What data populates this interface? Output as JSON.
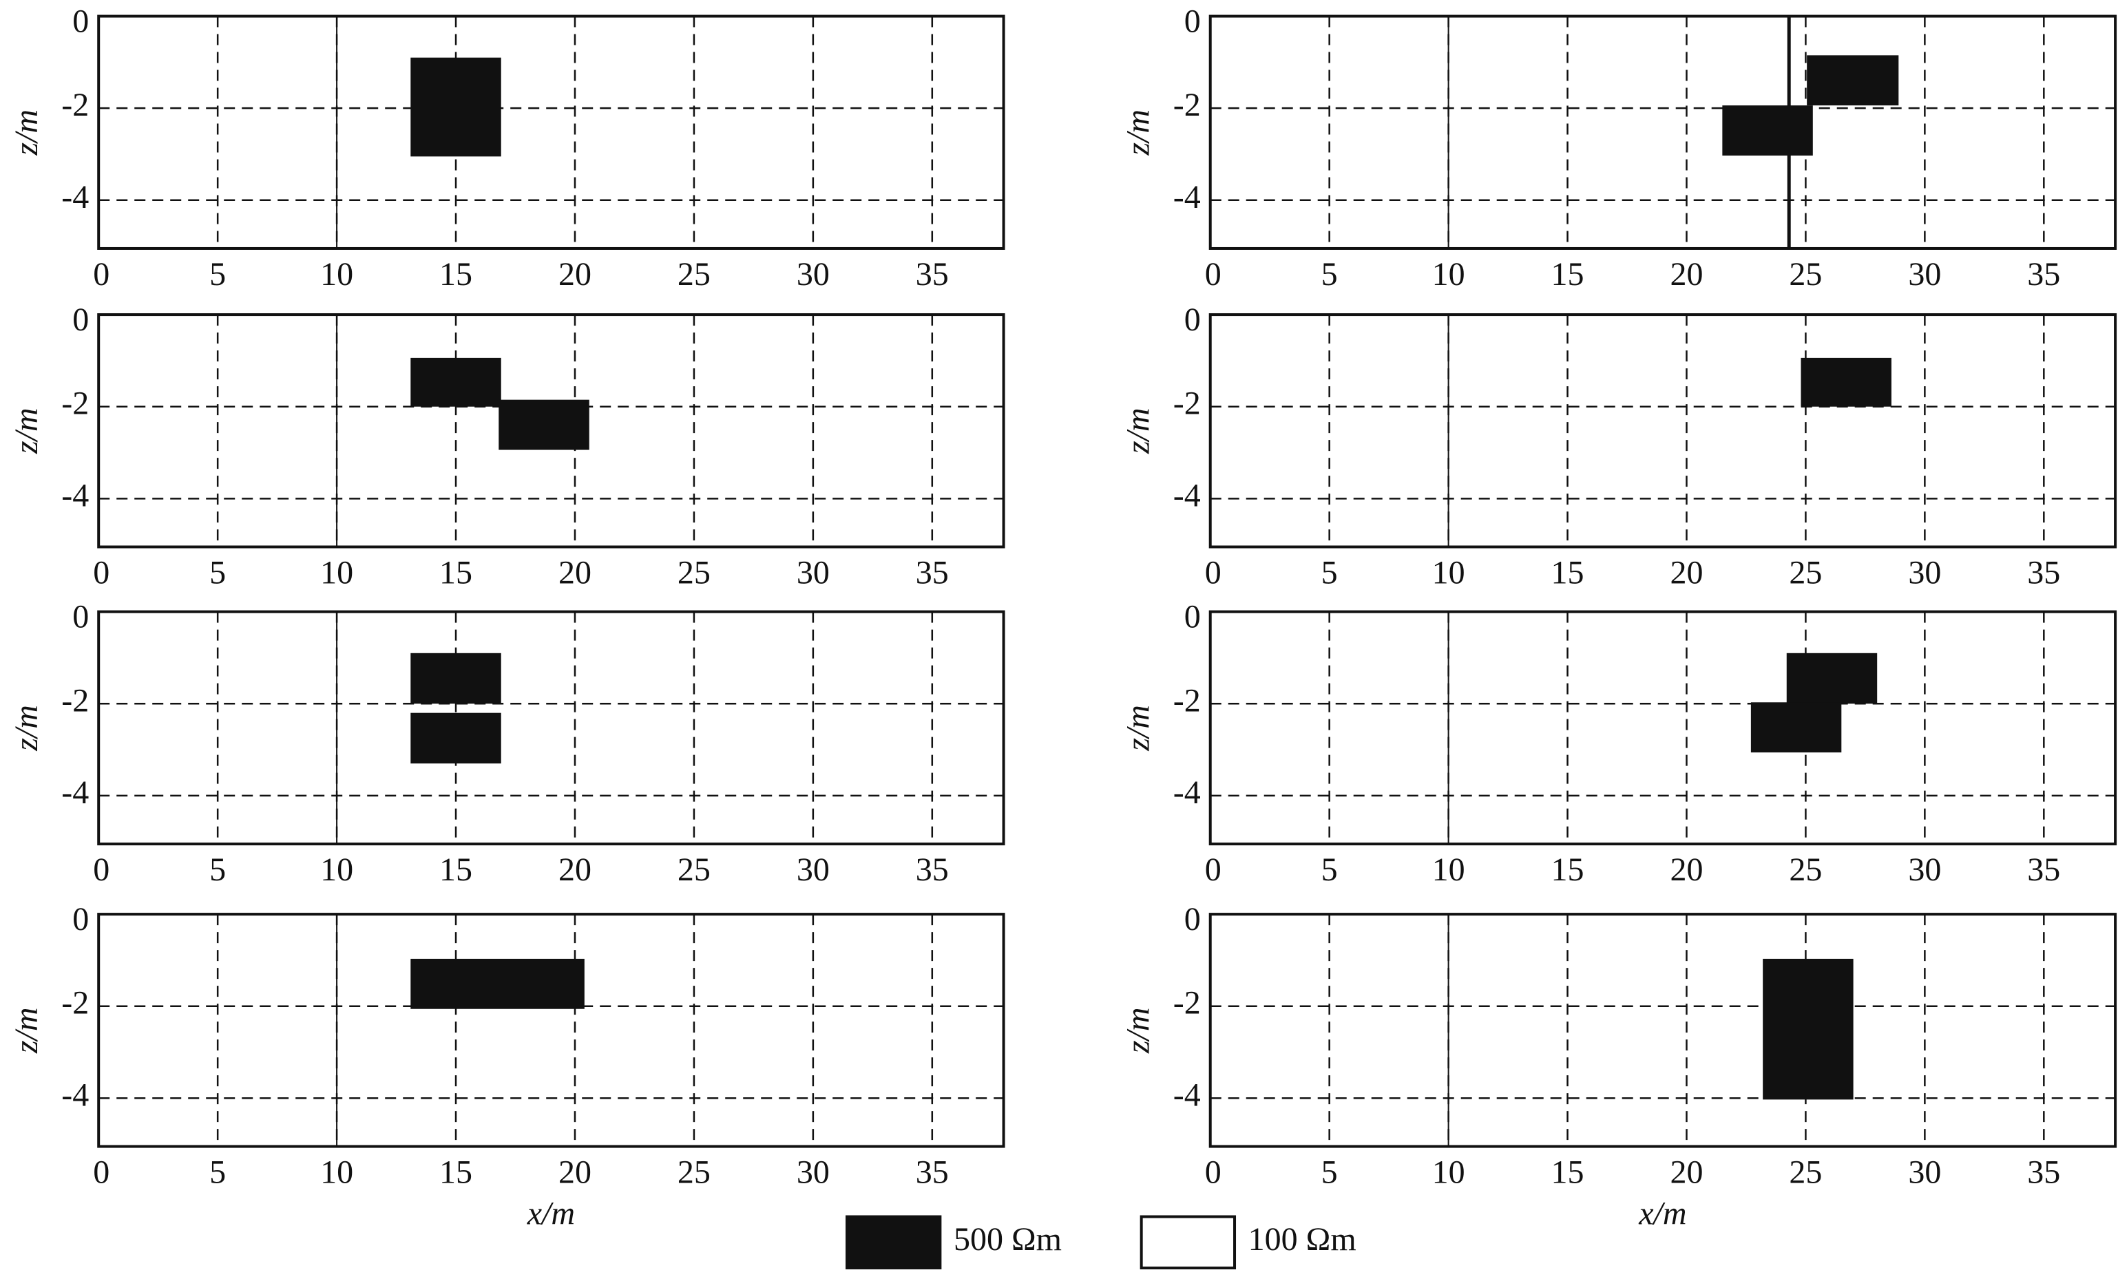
{
  "chart_data": [
    {
      "type": "block",
      "xlim": [
        0,
        38
      ],
      "ylim": [
        -5.05,
        0
      ],
      "xticks": [
        0,
        5,
        10,
        15,
        20,
        25,
        30,
        35
      ],
      "yticks": [
        0,
        -2,
        -4
      ],
      "ylabel": "z/m",
      "grid": true,
      "color": "#111111",
      "vlines": [
        10
      ],
      "blocks": [
        {
          "x": [
            13.1,
            16.9
          ],
          "z": [
            -0.9,
            -3.05
          ]
        }
      ]
    },
    {
      "type": "block",
      "xlim": [
        0,
        38
      ],
      "ylim": [
        -5.05,
        0
      ],
      "xticks": [
        0,
        5,
        10,
        15,
        20,
        25,
        30,
        35
      ],
      "yticks": [
        0,
        -2,
        -4
      ],
      "ylabel": "z/m",
      "grid": true,
      "color": "#111111",
      "vlines": [
        10,
        24.3
      ],
      "blocks": [
        {
          "x": [
            21.5,
            25.3
          ],
          "z": [
            -1.94,
            -3.03
          ]
        },
        {
          "x": [
            25.05,
            28.9
          ],
          "z": [
            -0.85,
            -1.94
          ]
        }
      ]
    },
    {
      "type": "block",
      "xlim": [
        0,
        38
      ],
      "ylim": [
        -5.05,
        0
      ],
      "xticks": [
        0,
        5,
        10,
        15,
        20,
        25,
        30,
        35
      ],
      "yticks": [
        0,
        -2,
        -4
      ],
      "ylabel": "z/m",
      "grid": true,
      "color": "#111111",
      "vlines": [
        10
      ],
      "blocks": [
        {
          "x": [
            13.1,
            16.9
          ],
          "z": [
            -0.94,
            -2.0
          ]
        },
        {
          "x": [
            16.8,
            20.6
          ],
          "z": [
            -1.85,
            -2.94
          ]
        }
      ]
    },
    {
      "type": "block",
      "xlim": [
        0,
        38
      ],
      "ylim": [
        -5.05,
        0
      ],
      "xticks": [
        0,
        5,
        10,
        15,
        20,
        25,
        30,
        35
      ],
      "yticks": [
        0,
        -2,
        -4
      ],
      "ylabel": "z/m",
      "grid": true,
      "color": "#111111",
      "vlines": [
        10
      ],
      "blocks": [
        {
          "x": [
            24.8,
            28.6
          ],
          "z": [
            -0.94,
            -2.0
          ]
        }
      ]
    },
    {
      "type": "block",
      "xlim": [
        0,
        38
      ],
      "ylim": [
        -5.05,
        0
      ],
      "xticks": [
        0,
        5,
        10,
        15,
        20,
        25,
        30,
        35
      ],
      "yticks": [
        0,
        -2,
        -4
      ],
      "ylabel": "z/m",
      "grid": true,
      "color": "#111111",
      "vlines": [
        10
      ],
      "blocks": [
        {
          "x": [
            13.1,
            16.9
          ],
          "z": [
            -0.9,
            -2.0
          ]
        },
        {
          "x": [
            13.1,
            16.9
          ],
          "z": [
            -2.2,
            -3.3
          ]
        }
      ]
    },
    {
      "type": "block",
      "xlim": [
        0,
        38
      ],
      "ylim": [
        -5.05,
        0
      ],
      "xticks": [
        0,
        5,
        10,
        15,
        20,
        25,
        30,
        35
      ],
      "yticks": [
        0,
        -2,
        -4
      ],
      "ylabel": "z/m",
      "grid": true,
      "color": "#111111",
      "vlines": [
        10
      ],
      "blocks": [
        {
          "x": [
            24.2,
            28.0
          ],
          "z": [
            -0.9,
            -2.0
          ]
        },
        {
          "x": [
            22.7,
            26.5
          ],
          "z": [
            -1.97,
            -3.06
          ]
        }
      ]
    },
    {
      "type": "block",
      "xlim": [
        0,
        38
      ],
      "ylim": [
        -5.05,
        0
      ],
      "xticks": [
        0,
        5,
        10,
        15,
        20,
        25,
        30,
        35
      ],
      "yticks": [
        0,
        -2,
        -4
      ],
      "ylabel": "z/m",
      "xlabel": "x/m",
      "grid": true,
      "color": "#111111",
      "vlines": [
        10
      ],
      "blocks": [
        {
          "x": [
            13.1,
            20.4
          ],
          "z": [
            -0.97,
            -2.06
          ]
        }
      ]
    },
    {
      "type": "block",
      "xlim": [
        0,
        38
      ],
      "ylim": [
        -5.05,
        0
      ],
      "xticks": [
        0,
        5,
        10,
        15,
        20,
        25,
        30,
        35
      ],
      "yticks": [
        0,
        -2,
        -4
      ],
      "ylabel": "z/m",
      "xlabel": "x/m",
      "grid": true,
      "color": "#111111",
      "vlines": [
        10
      ],
      "blocks": [
        {
          "x": [
            23.2,
            27.0
          ],
          "z": [
            -0.97,
            -4.03
          ]
        }
      ]
    }
  ],
  "legend": [
    {
      "label": "500 Ωm",
      "color": "#111111"
    },
    {
      "label": "100 Ωm",
      "color": "#ffffff"
    }
  ]
}
